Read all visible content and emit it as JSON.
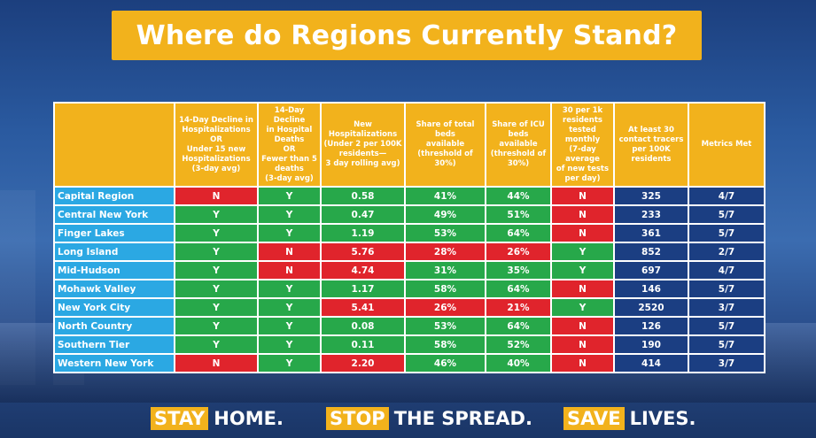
{
  "title": "Where do Regions Currently Stand?",
  "colors": {
    "title_bg": "#f2b21c",
    "region_bg": "#2ba8e3",
    "pass": "#27a84a",
    "fail": "#e0242c",
    "count_bg": "#1b3e82"
  },
  "table": {
    "headers": [
      "",
      "14-Day Decline in\nHospitalizations\nOR\nUnder 15 new\nHospitalizations\n(3-day avg)",
      "14-Day Decline\nin Hospital\nDeaths\nOR\nFewer than 5\ndeaths\n(3-day avg)",
      "New\nHospitalizations\n(Under 2 per 100K\nresidents—\n3 day rolling avg)",
      "Share of total beds\navailable\n(threshold of 30%)",
      "Share of ICU\nbeds available\n(threshold of\n30%)",
      "30 per 1k\nresidents\ntested\nmonthly\n(7-day average\nof new tests\nper day)",
      "At least 30\ncontact tracers\nper 100K\nresidents",
      "Metrics Met"
    ],
    "rows": [
      {
        "region": "Capital Region",
        "cells": [
          {
            "v": "N",
            "s": "r"
          },
          {
            "v": "Y",
            "s": "g"
          },
          {
            "v": "0.58",
            "s": "g"
          },
          {
            "v": "41%",
            "s": "g"
          },
          {
            "v": "44%",
            "s": "g"
          },
          {
            "v": "N",
            "s": "r"
          },
          {
            "v": "325",
            "s": "nb"
          },
          {
            "v": "4/7",
            "s": "nb"
          }
        ]
      },
      {
        "region": "Central New York",
        "cells": [
          {
            "v": "Y",
            "s": "g"
          },
          {
            "v": "Y",
            "s": "g"
          },
          {
            "v": "0.47",
            "s": "g"
          },
          {
            "v": "49%",
            "s": "g"
          },
          {
            "v": "51%",
            "s": "g"
          },
          {
            "v": "N",
            "s": "r"
          },
          {
            "v": "233",
            "s": "nb"
          },
          {
            "v": "5/7",
            "s": "nb"
          }
        ]
      },
      {
        "region": "Finger Lakes",
        "cells": [
          {
            "v": "Y",
            "s": "g"
          },
          {
            "v": "Y",
            "s": "g"
          },
          {
            "v": "1.19",
            "s": "g"
          },
          {
            "v": "53%",
            "s": "g"
          },
          {
            "v": "64%",
            "s": "g"
          },
          {
            "v": "N",
            "s": "r"
          },
          {
            "v": "361",
            "s": "nb"
          },
          {
            "v": "5/7",
            "s": "nb"
          }
        ]
      },
      {
        "region": "Long Island",
        "cells": [
          {
            "v": "Y",
            "s": "g"
          },
          {
            "v": "N",
            "s": "r"
          },
          {
            "v": "5.76",
            "s": "r"
          },
          {
            "v": "28%",
            "s": "r"
          },
          {
            "v": "26%",
            "s": "r"
          },
          {
            "v": "Y",
            "s": "g"
          },
          {
            "v": "852",
            "s": "nb"
          },
          {
            "v": "2/7",
            "s": "nb"
          }
        ]
      },
      {
        "region": "Mid-Hudson",
        "cells": [
          {
            "v": "Y",
            "s": "g"
          },
          {
            "v": "N",
            "s": "r"
          },
          {
            "v": "4.74",
            "s": "r"
          },
          {
            "v": "31%",
            "s": "g"
          },
          {
            "v": "35%",
            "s": "g"
          },
          {
            "v": "Y",
            "s": "g"
          },
          {
            "v": "697",
            "s": "nb"
          },
          {
            "v": "4/7",
            "s": "nb"
          }
        ]
      },
      {
        "region": "Mohawk Valley",
        "cells": [
          {
            "v": "Y",
            "s": "g"
          },
          {
            "v": "Y",
            "s": "g"
          },
          {
            "v": "1.17",
            "s": "g"
          },
          {
            "v": "58%",
            "s": "g"
          },
          {
            "v": "64%",
            "s": "g"
          },
          {
            "v": "N",
            "s": "r"
          },
          {
            "v": "146",
            "s": "nb"
          },
          {
            "v": "5/7",
            "s": "nb"
          }
        ]
      },
      {
        "region": "New York City",
        "cells": [
          {
            "v": "Y",
            "s": "g"
          },
          {
            "v": "Y",
            "s": "g"
          },
          {
            "v": "5.41",
            "s": "r"
          },
          {
            "v": "26%",
            "s": "r"
          },
          {
            "v": "21%",
            "s": "r"
          },
          {
            "v": "Y",
            "s": "g"
          },
          {
            "v": "2520",
            "s": "nb"
          },
          {
            "v": "3/7",
            "s": "nb"
          }
        ]
      },
      {
        "region": "North Country",
        "cells": [
          {
            "v": "Y",
            "s": "g"
          },
          {
            "v": "Y",
            "s": "g"
          },
          {
            "v": "0.08",
            "s": "g"
          },
          {
            "v": "53%",
            "s": "g"
          },
          {
            "v": "64%",
            "s": "g"
          },
          {
            "v": "N",
            "s": "r"
          },
          {
            "v": "126",
            "s": "nb"
          },
          {
            "v": "5/7",
            "s": "nb"
          }
        ]
      },
      {
        "region": "Southern Tier",
        "cells": [
          {
            "v": "Y",
            "s": "g"
          },
          {
            "v": "Y",
            "s": "g"
          },
          {
            "v": "0.11",
            "s": "g"
          },
          {
            "v": "58%",
            "s": "g"
          },
          {
            "v": "52%",
            "s": "g"
          },
          {
            "v": "N",
            "s": "r"
          },
          {
            "v": "190",
            "s": "nb"
          },
          {
            "v": "5/7",
            "s": "nb"
          }
        ]
      },
      {
        "region": "Western New York",
        "cells": [
          {
            "v": "N",
            "s": "r"
          },
          {
            "v": "Y",
            "s": "g"
          },
          {
            "v": "2.20",
            "s": "r"
          },
          {
            "v": "46%",
            "s": "g"
          },
          {
            "v": "40%",
            "s": "g"
          },
          {
            "v": "N",
            "s": "r"
          },
          {
            "v": "414",
            "s": "nb"
          },
          {
            "v": "3/7",
            "s": "nb"
          }
        ]
      }
    ]
  },
  "footer": [
    {
      "highlight": "STAY",
      "rest": "HOME."
    },
    {
      "highlight": "STOP",
      "rest": "THE SPREAD."
    },
    {
      "highlight": "SAVE",
      "rest": "LIVES."
    }
  ]
}
